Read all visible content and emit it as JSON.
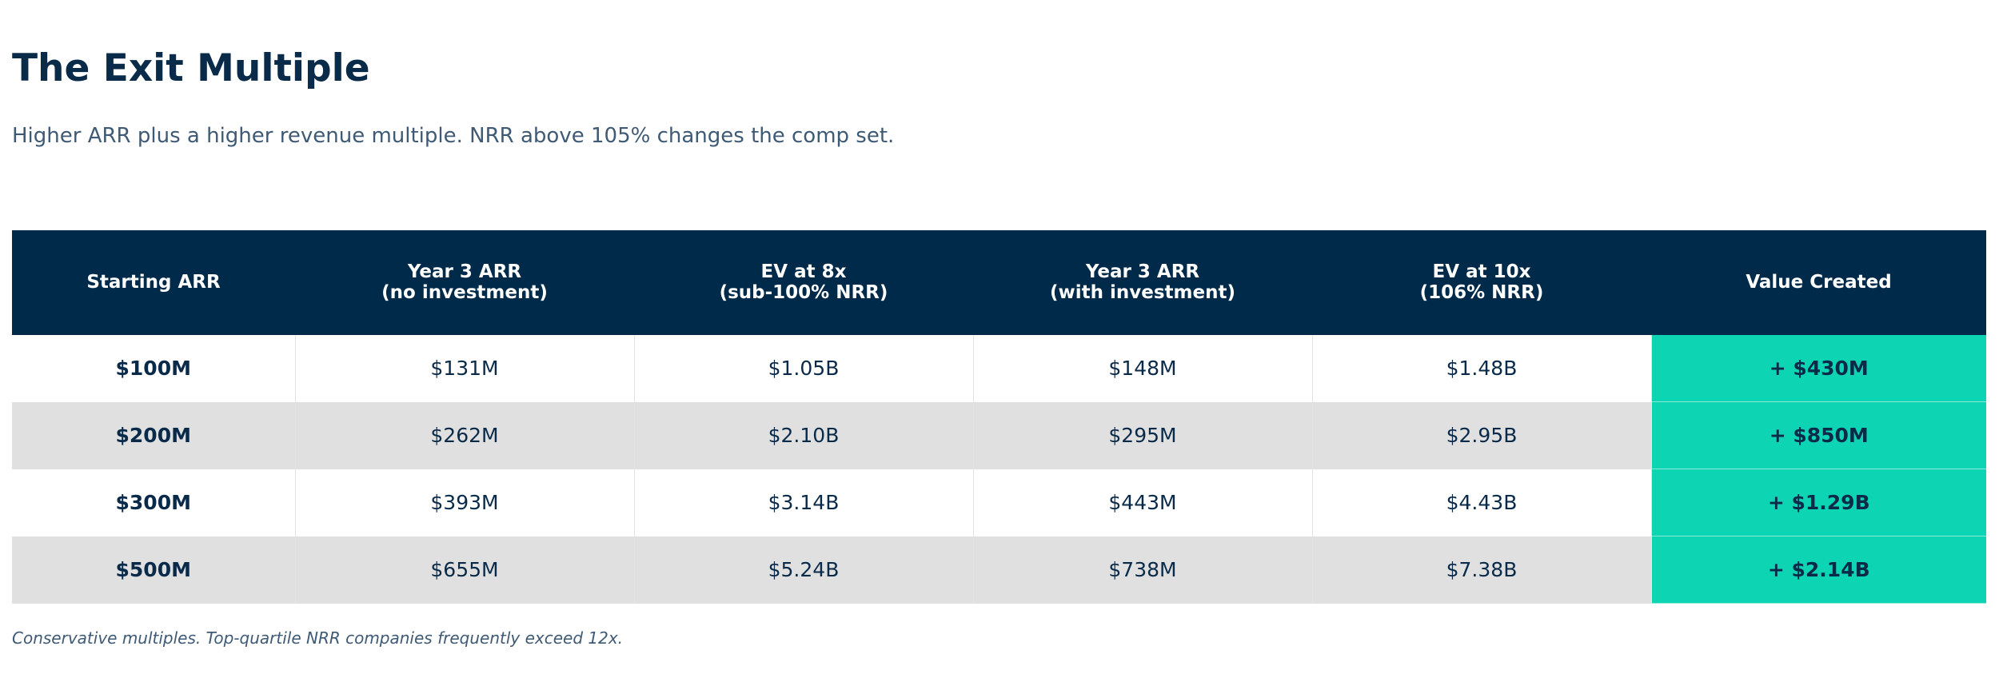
{
  "title": "The Exit Multiple",
  "subtitle": "Higher ARR plus a higher revenue multiple. NRR above 105% changes the comp set.",
  "table": {
    "headers": [
      [
        "Starting ARR"
      ],
      [
        "Year 3 ARR",
        "(no investment)"
      ],
      [
        "EV at 8x",
        "(sub-100% NRR)"
      ],
      [
        "Year 3 ARR",
        "(with investment)"
      ],
      [
        "EV at 10x",
        "(106% NRR)"
      ],
      [
        "Value Created"
      ]
    ],
    "rows": [
      [
        "$100M",
        "$131M",
        "$1.05B",
        "$148M",
        "$1.48B",
        "+ $430M"
      ],
      [
        "$200M",
        "$262M",
        "$2.10B",
        "$295M",
        "$2.95B",
        "+ $850M"
      ],
      [
        "$300M",
        "$393M",
        "$3.14B",
        "$443M",
        "$4.43B",
        "+ $1.29B"
      ],
      [
        "$500M",
        "$655M",
        "$5.24B",
        "$738M",
        "$7.38B",
        "+ $2.14B"
      ]
    ]
  },
  "footnote": "Conservative multiples. Top-quartile NRR companies frequently exceed 12x.",
  "colors": {
    "header_bg": "#002a49",
    "accent_value_created": "#0dd5b4",
    "text_primary": "#0a2a4a",
    "text_secondary": "#3e5a74",
    "alt_row_bg": "#e0e0e0"
  }
}
